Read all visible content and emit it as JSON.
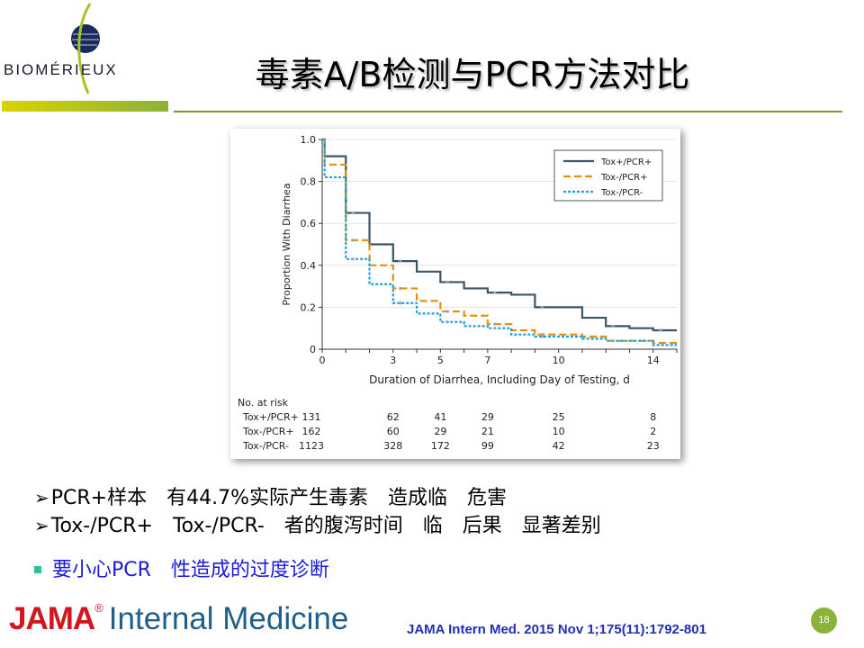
{
  "brand": {
    "name": "BIOMÉRIEUX",
    "logo_icon": "globe-swoosh-icon"
  },
  "slide": {
    "title": "毒素A/B检测与PCR方法对比",
    "page_number": "18"
  },
  "bullets": [
    "PCR+样本　有44.7%实际产生毒素　造成临　危害",
    "Tox-/PCR+　Tox-/PCR-　者的腹泻时间　临　后果　显著差别"
  ],
  "callout": "要小心PCR　性造成的过度诊断",
  "journal": {
    "name_a": "JAMA",
    "name_b": "Internal Medicine",
    "reg": "®"
  },
  "citation": "JAMA Intern Med. 2015 Nov 1;175(11):1792-801",
  "colors": {
    "tox_pos_pcr_pos": "#3a5568",
    "tox_neg_pcr_pos": "#e8900c",
    "tox_neg_pcr_neg": "#1aa0e0",
    "accent": "#8ab33a"
  },
  "chart_data": {
    "type": "line",
    "xlabel": "Duration of Diarrhea, Including Day of Testing, d",
    "ylabel": "Proportion With Diarrhea",
    "xlim": [
      0,
      15
    ],
    "ylim": [
      0,
      1.0
    ],
    "x_ticks": [
      0,
      3,
      5,
      7,
      10,
      14
    ],
    "y_ticks": [
      "0",
      "0.2",
      "0.4",
      "0.6",
      "0.8",
      "1.0"
    ],
    "grid": true,
    "legend_position": "top-right",
    "series": [
      {
        "name": "Tox+/PCR+",
        "style": "solid",
        "steps": [
          [
            0,
            1.0
          ],
          [
            0.1,
            0.92
          ],
          [
            1,
            0.65
          ],
          [
            2,
            0.5
          ],
          [
            3,
            0.42
          ],
          [
            4,
            0.37
          ],
          [
            5,
            0.32
          ],
          [
            6,
            0.29
          ],
          [
            7,
            0.27
          ],
          [
            8,
            0.26
          ],
          [
            9,
            0.2
          ],
          [
            11,
            0.15
          ],
          [
            12,
            0.11
          ],
          [
            13,
            0.1
          ],
          [
            14,
            0.09
          ],
          [
            15,
            0.09
          ]
        ]
      },
      {
        "name": "Tox-/PCR+",
        "style": "dashed",
        "steps": [
          [
            0,
            1.0
          ],
          [
            0.1,
            0.88
          ],
          [
            1,
            0.52
          ],
          [
            2,
            0.4
          ],
          [
            3,
            0.29
          ],
          [
            4,
            0.23
          ],
          [
            5,
            0.18
          ],
          [
            6,
            0.16
          ],
          [
            7,
            0.12
          ],
          [
            8,
            0.09
          ],
          [
            9,
            0.07
          ],
          [
            11,
            0.06
          ],
          [
            12,
            0.04
          ],
          [
            14,
            0.03
          ],
          [
            15,
            0.03
          ]
        ]
      },
      {
        "name": "Tox-/PCR-",
        "style": "dotted",
        "steps": [
          [
            0,
            1.0
          ],
          [
            0.1,
            0.82
          ],
          [
            1,
            0.43
          ],
          [
            2,
            0.31
          ],
          [
            3,
            0.22
          ],
          [
            4,
            0.17
          ],
          [
            5,
            0.13
          ],
          [
            6,
            0.11
          ],
          [
            7,
            0.1
          ],
          [
            8,
            0.07
          ],
          [
            9,
            0.06
          ],
          [
            11,
            0.05
          ],
          [
            12,
            0.04
          ],
          [
            14,
            0.02
          ],
          [
            15,
            0.02
          ]
        ]
      }
    ],
    "risk_table": {
      "title": "No. at risk",
      "days": [
        0,
        3,
        5,
        7,
        10,
        14
      ],
      "rows": [
        {
          "label": "Tox+/PCR+",
          "values": [
            "131",
            "62",
            "41",
            "29",
            "25",
            "8"
          ]
        },
        {
          "label": "Tox-/PCR+",
          "values": [
            "162",
            "60",
            "29",
            "21",
            "10",
            "2"
          ]
        },
        {
          "label": "Tox-/PCR-",
          "values": [
            "1123",
            "328",
            "172",
            "99",
            "42",
            "23"
          ]
        }
      ]
    }
  }
}
